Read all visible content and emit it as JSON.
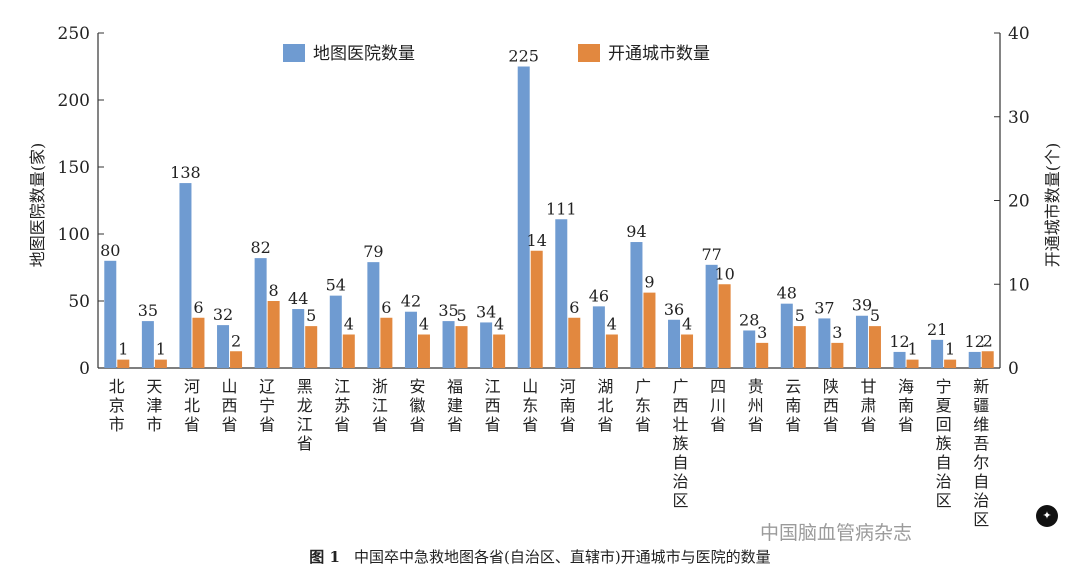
{
  "chart_data": {
    "type": "bar",
    "categories": [
      "北京市",
      "天津市",
      "河北省",
      "山西省",
      "辽宁省",
      "黑龙江省",
      "江苏省",
      "浙江省",
      "安徽省",
      "福建省",
      "江西省",
      "山东省",
      "河南省",
      "湖北省",
      "广东省",
      "广西壮族自治区",
      "四川省",
      "贵州省",
      "云南省",
      "陕西省",
      "甘肃省",
      "海南省",
      "宁夏回族自治区",
      "新疆维吾尔自治区"
    ],
    "series": [
      {
        "name": "地图医院数量",
        "axis": "left",
        "color": "#6f9bd1",
        "values": [
          80,
          35,
          138,
          32,
          82,
          44,
          54,
          79,
          42,
          35,
          34,
          225,
          111,
          46,
          94,
          36,
          77,
          28,
          48,
          37,
          39,
          12,
          21,
          12
        ]
      },
      {
        "name": "开通城市数量",
        "axis": "right",
        "color": "#e2883f",
        "values": [
          1,
          1,
          6,
          2,
          8,
          5,
          4,
          6,
          4,
          5,
          4,
          14,
          6,
          4,
          9,
          4,
          10,
          3,
          5,
          3,
          5,
          1,
          1,
          2
        ]
      }
    ],
    "ylabel": "地图医院数量(家)",
    "y2label": "开通城市数量(个)",
    "ylim": [
      0,
      250
    ],
    "y2lim": [
      0,
      40
    ],
    "yticks": [
      0,
      50,
      100,
      150,
      200,
      250
    ],
    "y2ticks": [
      0,
      10,
      20,
      30,
      40
    ],
    "legend_position": "top-center",
    "grid": false
  },
  "caption": {
    "label": "图 1",
    "text": "中国卒中急救地图各省(自治区、直辖市)开通城市与医院的数量"
  },
  "watermark": {
    "text": "中国脑血管病杂志",
    "icon": "wechat-icon"
  }
}
